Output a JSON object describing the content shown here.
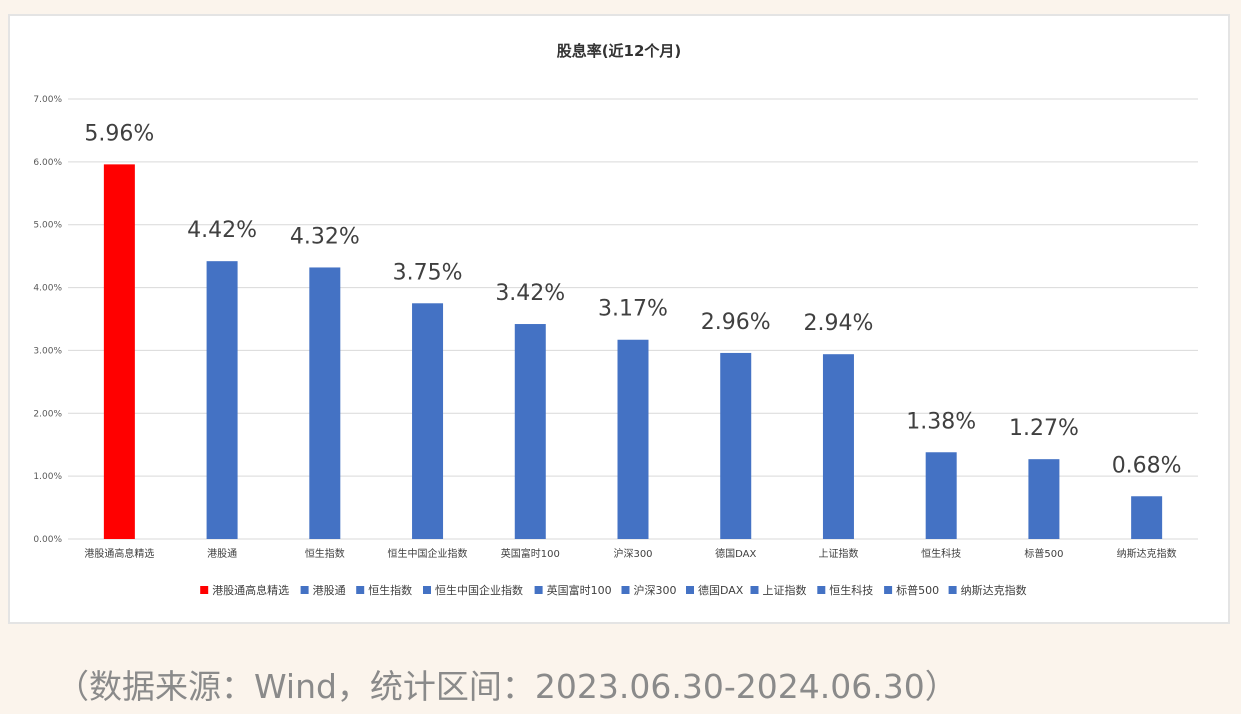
{
  "chart_data": {
    "type": "bar",
    "title": "股息率(近12个月)",
    "xlabel": "",
    "ylabel": "",
    "ylim": [
      0,
      7
    ],
    "yticks": [
      0,
      1,
      2,
      3,
      4,
      5,
      6,
      7
    ],
    "ytick_labels": [
      "0.00%",
      "1.00%",
      "2.00%",
      "3.00%",
      "4.00%",
      "5.00%",
      "6.00%",
      "7.00%"
    ],
    "grid": true,
    "legend_placement": "bottom",
    "categories": [
      "港股通高息精选",
      "港股通",
      "恒生指数",
      "恒生中国企业指数",
      "英国富时100",
      "沪深300",
      "德国DAX",
      "上证指数",
      "恒生科技",
      "标普500",
      "纳斯达克指数"
    ],
    "values": [
      5.96,
      4.42,
      4.32,
      3.75,
      3.42,
      3.17,
      2.96,
      2.94,
      1.38,
      1.27,
      0.68
    ],
    "value_labels": [
      "5.96%",
      "4.42%",
      "4.32%",
      "3.75%",
      "3.42%",
      "3.17%",
      "2.96%",
      "2.94%",
      "1.38%",
      "1.27%",
      "0.68%"
    ],
    "colors": [
      "#ff0000",
      "#4472c4",
      "#4472c4",
      "#4472c4",
      "#4472c4",
      "#4472c4",
      "#4472c4",
      "#4472c4",
      "#4472c4",
      "#4472c4",
      "#4472c4"
    ]
  },
  "source_note": "（数据来源：Wind，统计区间：2023.06.30-2024.06.30）"
}
